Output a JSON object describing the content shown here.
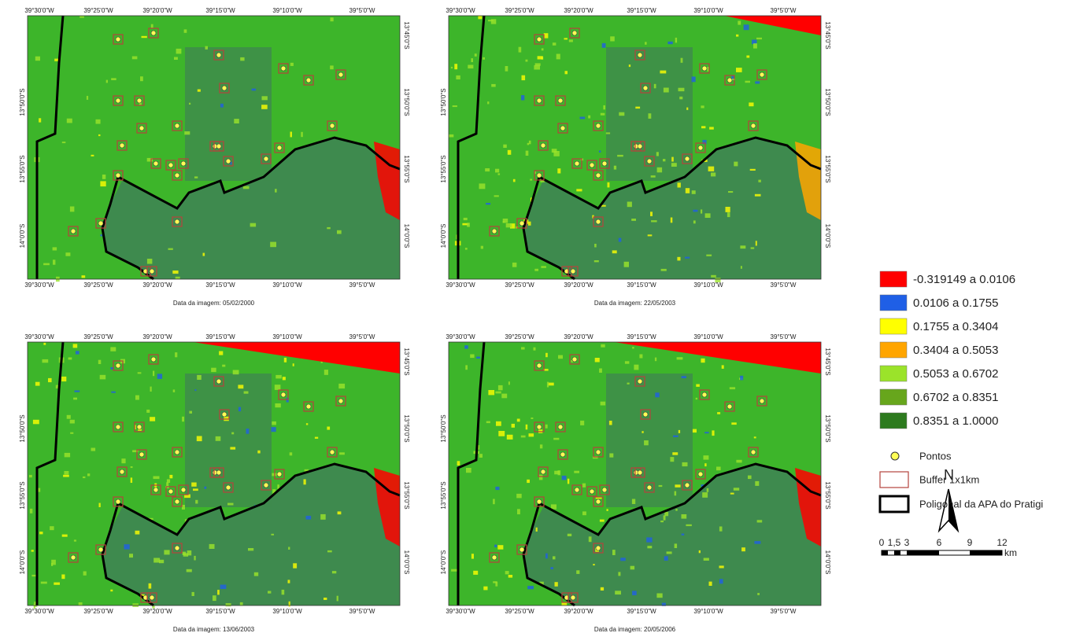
{
  "panels": [
    {
      "caption": "Data da imagem: 05/02/2000",
      "top_labels": [
        "39°30'0\"W",
        "39°25'0\"W",
        "39°20'0\"W",
        "39°15'0\"W",
        "39°10'0\"W",
        "39°5'0\"W"
      ],
      "bottom_labels": [
        "39°30'0\"W",
        "39°25'0\"W",
        "39°20'0\"W",
        "39°15'0\"W",
        "39°10'0\"W",
        "39°5'0\"W"
      ],
      "left_labels": [
        "13°50'0\"S",
        "13°55'0\"S",
        "14°0'0\"S"
      ],
      "right_labels": [
        "13°45'0\"S",
        "13°50'0\"S",
        "13°55'0\"S",
        "14°0'0\"S"
      ]
    },
    {
      "caption": "Data da imagem: 22/05/2003",
      "top_labels": [
        "39°30'0\"W",
        "39°25'0\"W",
        "39°20'0\"W",
        "39°15'0\"W",
        "39°10'0\"W",
        "39°5'0\"W"
      ],
      "bottom_labels": [
        "39°30'0\"W",
        "39°25'0\"W",
        "39°20'0\"W",
        "39°15'0\"W",
        "39°10'0\"W",
        "39°5'0\"W"
      ],
      "left_labels": [
        "13°50'0\"S",
        "13°55'0\"S",
        "14°0'0\"S"
      ],
      "right_labels": [
        "13°45'0\"S",
        "13°50'0\"S",
        "13°55'0\"S",
        "14°0'0\"S"
      ]
    },
    {
      "caption": "Data da imagem: 13/06/2003",
      "top_labels": [
        "39°30'0\"W",
        "39°25'0\"W",
        "39°20'0\"W",
        "39°15'0\"W",
        "39°10'0\"W",
        "39°5'0\"W"
      ],
      "bottom_labels": [
        "39°30'0\"W",
        "39°25'0\"W",
        "39°20'0\"W",
        "39°15'0\"W",
        "39°10'0\"W",
        "39°5'0\"W"
      ],
      "left_labels": [
        "13°50'0\"S",
        "13°55'0\"S",
        "14°0'0\"S"
      ],
      "right_labels": [
        "13°45'0\"S",
        "13°50'0\"S",
        "13°55'0\"S",
        "14°0'0\"S"
      ]
    },
    {
      "caption": "Data da imagem: 20/05/2006",
      "top_labels": [
        "39°30'0\"W",
        "39°25'0\"W",
        "39°20'0\"W",
        "39°15'0\"W",
        "39°10'0\"W",
        "39°5'0\"W"
      ],
      "bottom_labels": [
        "39°30'0\"W",
        "39°25'0\"W",
        "39°20'0\"W",
        "39°15'0\"W",
        "39°10'0\"W",
        "39°5'0\"W"
      ],
      "left_labels": [
        "13°50'0\"S",
        "13°55'0\"S",
        "14°0'0\"S"
      ],
      "right_labels": [
        "13°45'0\"S",
        "13°50'0\"S",
        "13°55'0\"S",
        "14°0'0\"S"
      ]
    }
  ],
  "legend": {
    "classes": [
      {
        "label": "-0.319149 a 0.0106",
        "color": "#ff0000"
      },
      {
        "label": "0.0106  a  0.1755",
        "color": "#1f5fe6"
      },
      {
        "label": "0.1755  a  0.3404",
        "color": "#ffff00"
      },
      {
        "label": "0.3404  a  0.5053",
        "color": "#ffa500"
      },
      {
        "label": "0.5053  a  0.6702",
        "color": "#9be32a"
      },
      {
        "label": "0.6702  a  0.8351",
        "color": "#67a61c"
      },
      {
        "label": "0.8351  a  1.0000",
        "color": "#2d7a1e"
      }
    ],
    "points": "Pontos",
    "buffer": "Buffer 1x1km",
    "polygon": "Poligonal da APA do Pratigi"
  },
  "scale_bar": {
    "labels": [
      "0",
      "1,5",
      "3",
      "6",
      "9",
      "12"
    ],
    "unit": "km"
  },
  "north": "N"
}
